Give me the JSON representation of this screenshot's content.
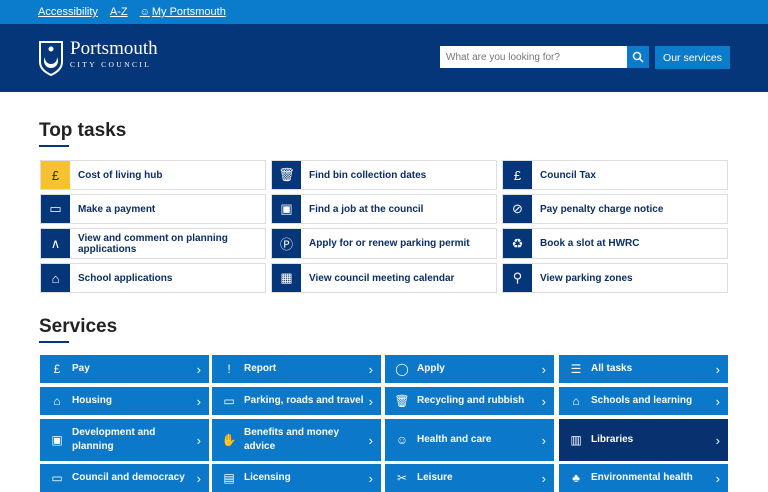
{
  "topbar": {
    "links": [
      "Accessibility",
      "A-Z",
      "My Portsmouth"
    ]
  },
  "header": {
    "logo_line1": "Portsmouth",
    "logo_line2": "CITY COUNCIL",
    "search_placeholder": "What are you looking for?",
    "services_button": "Our services"
  },
  "top_tasks": {
    "title": "Top tasks",
    "items": [
      {
        "label": "Cost of living hub",
        "icon": "pound-icon"
      },
      {
        "label": "Find bin collection dates",
        "icon": "bin-icon"
      },
      {
        "label": "Council Tax",
        "icon": "pound-icon"
      },
      {
        "label": "Make a payment",
        "icon": "card-icon"
      },
      {
        "label": "Find a job at the council",
        "icon": "id-card-icon"
      },
      {
        "label": "Pay penalty charge notice",
        "icon": "no-parking-icon"
      },
      {
        "label": "View and comment on planning applications",
        "icon": "compass-icon"
      },
      {
        "label": "Apply for or renew parking permit",
        "icon": "parking-icon"
      },
      {
        "label": "Book a slot at HWRC",
        "icon": "recycle-icon"
      },
      {
        "label": "School applications",
        "icon": "school-icon"
      },
      {
        "label": "View council meeting calendar",
        "icon": "calendar-icon"
      },
      {
        "label": "View parking zones",
        "icon": "map-icon"
      }
    ]
  },
  "services": {
    "title": "Services",
    "items": [
      {
        "label": "Pay",
        "icon": "pound-icon"
      },
      {
        "label": "Report",
        "icon": "report-icon"
      },
      {
        "label": "Apply",
        "icon": "mouse-icon"
      },
      {
        "label": "All tasks",
        "icon": "list-icon"
      },
      {
        "label": "Housing",
        "icon": "house-icon"
      },
      {
        "label": "Parking, roads and travel",
        "icon": "car-icon"
      },
      {
        "label": "Recycling and rubbish",
        "icon": "bin-icon"
      },
      {
        "label": "Schools and learning",
        "icon": "school-icon"
      },
      {
        "label": "Development and planning",
        "icon": "plan-icon"
      },
      {
        "label": "Benefits and money advice",
        "icon": "hand-icon"
      },
      {
        "label": "Health and care",
        "icon": "head-icon"
      },
      {
        "label": "Libraries",
        "icon": "books-icon"
      },
      {
        "label": "Council and democracy",
        "icon": "screen-icon"
      },
      {
        "label": "Licensing",
        "icon": "licence-icon"
      },
      {
        "label": "Leisure",
        "icon": "leisure-icon"
      },
      {
        "label": "Environmental health",
        "icon": "trees-icon"
      }
    ]
  }
}
